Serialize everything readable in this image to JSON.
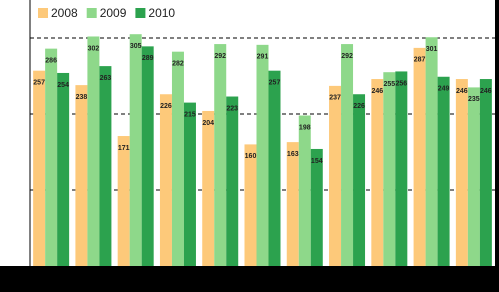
{
  "chart_data": {
    "type": "bar",
    "categories": [
      null,
      null,
      null,
      null,
      null,
      null,
      null,
      null,
      null,
      null,
      null
    ],
    "series": [
      {
        "name": "2008",
        "color": "#fdc97a",
        "values": [
          257,
          238,
          171,
          226,
          204,
          160,
          163,
          237,
          246,
          287,
          246
        ]
      },
      {
        "name": "2009",
        "color": "#8ed88a",
        "values": [
          286,
          302,
          305,
          282,
          292,
          291,
          198,
          292,
          255,
          301,
          235
        ]
      },
      {
        "name": "2010",
        "color": "#2ca24e",
        "values": [
          254,
          263,
          289,
          215,
          223,
          257,
          154,
          226,
          256,
          249,
          246
        ]
      }
    ],
    "ylim": [
      0,
      350
    ],
    "gridlines": [
      100,
      200,
      300
    ],
    "legend": "top-left"
  }
}
